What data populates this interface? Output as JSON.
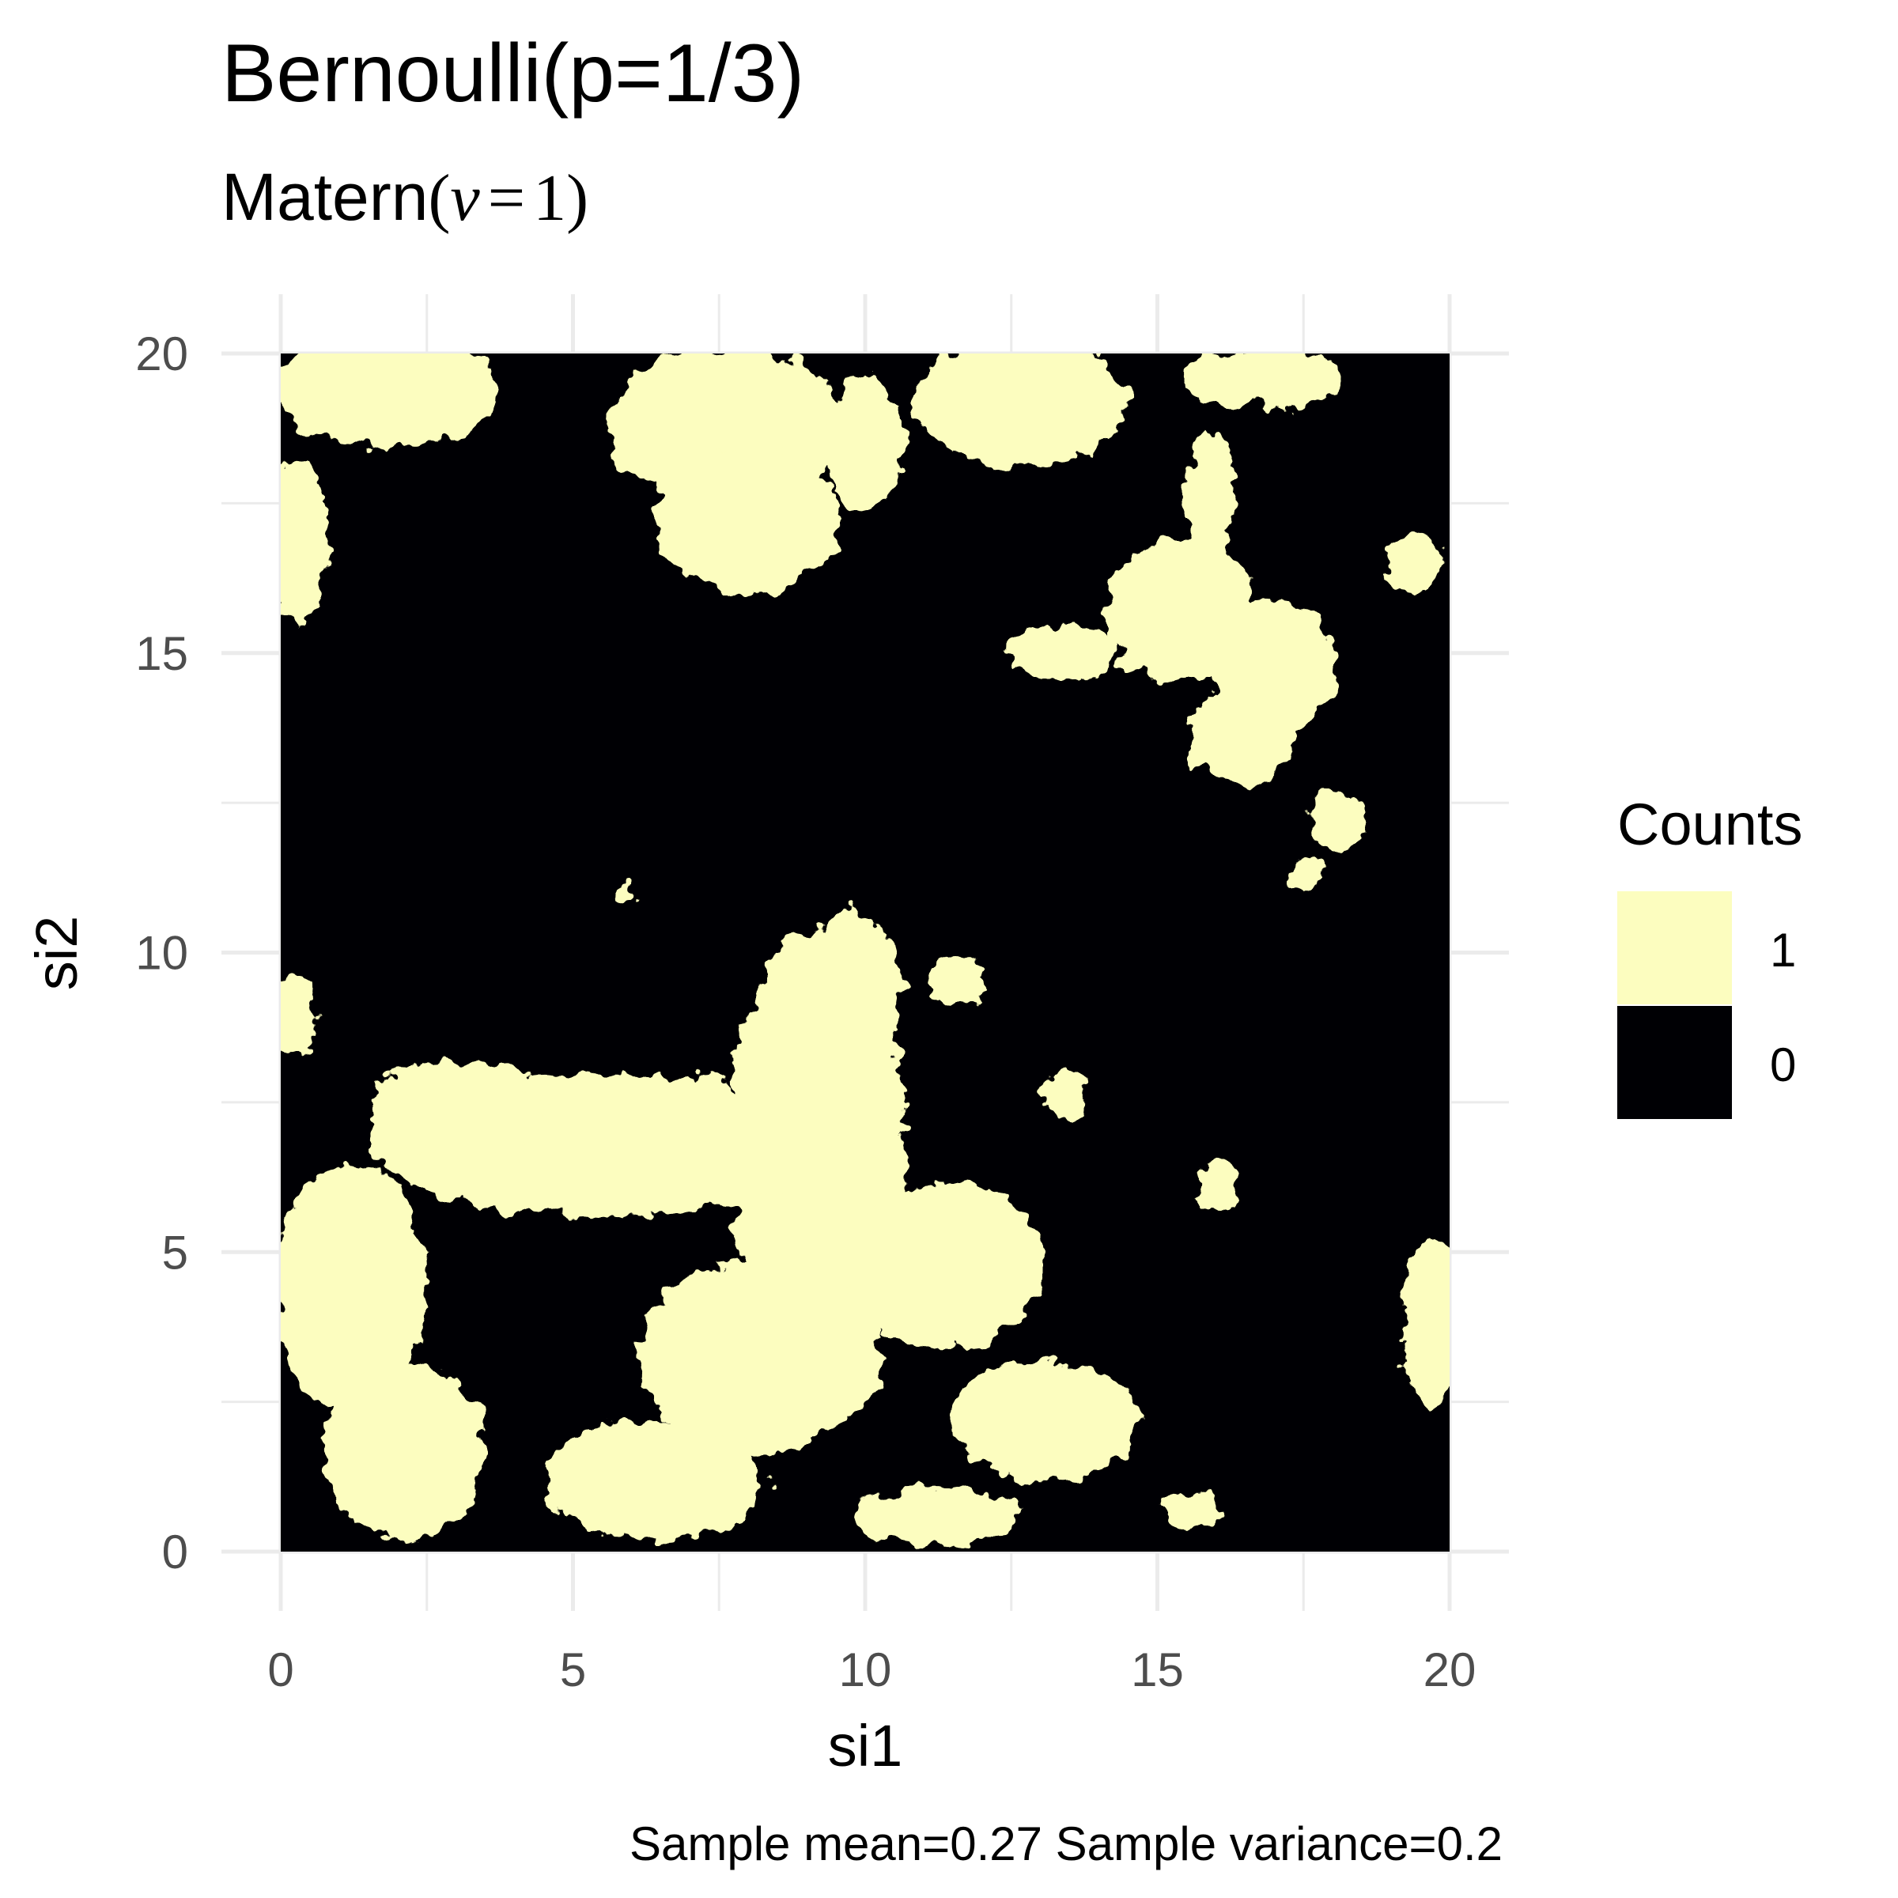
{
  "chart_data": {
    "type": "heatmap",
    "title": "Bernoulli(p=1/3)",
    "subtitle": {
      "prefix": "Matern",
      "open_paren": "(",
      "nu_symbol": "ν",
      "equals": "=",
      "value": "1",
      "close_paren": ")"
    },
    "xlabel": "si1",
    "ylabel": "si2",
    "xlim": [
      0,
      20
    ],
    "ylim": [
      0,
      20
    ],
    "x_ticks": [
      "0",
      "5",
      "10",
      "15",
      "20"
    ],
    "y_ticks": [
      "0",
      "5",
      "10",
      "15",
      "20"
    ],
    "grid": true,
    "legend": {
      "title": "Counts",
      "position": "right",
      "entries": [
        {
          "label": "1",
          "color": "#FCFDBF"
        },
        {
          "label": "0",
          "color": "#000004"
        }
      ]
    },
    "caption": "Sample mean=0.27 Sample variance=0.2",
    "field_background_value": 0,
    "regions_value_1": [
      {
        "name": "top-left-blob",
        "cx": 1.8,
        "cy": 19.4,
        "rx": 1.9,
        "ry": 1.0
      },
      {
        "name": "left-edge-upper",
        "cx": 0.3,
        "cy": 16.9,
        "rx": 0.5,
        "ry": 1.4
      },
      {
        "name": "top-center-blob-a",
        "cx": 7.6,
        "cy": 18.8,
        "rx": 2.0,
        "ry": 1.3
      },
      {
        "name": "top-center-blob-b",
        "cx": 8.0,
        "cy": 17.2,
        "rx": 1.6,
        "ry": 1.2
      },
      {
        "name": "top-center-blob-c",
        "cx": 10.0,
        "cy": 18.5,
        "rx": 0.7,
        "ry": 1.1
      },
      {
        "name": "top-right-blob",
        "cx": 12.7,
        "cy": 19.2,
        "rx": 1.8,
        "ry": 1.1
      },
      {
        "name": "top-right-small",
        "cx": 16.8,
        "cy": 19.6,
        "rx": 1.4,
        "ry": 0.5
      },
      {
        "name": "right-column-neck",
        "cx": 15.9,
        "cy": 17.6,
        "rx": 0.4,
        "ry": 1.1
      },
      {
        "name": "right-middle-blob-a",
        "cx": 15.4,
        "cy": 15.7,
        "rx": 1.3,
        "ry": 1.2
      },
      {
        "name": "right-middle-blob-b",
        "cx": 17.0,
        "cy": 14.8,
        "rx": 1.1,
        "ry": 1.1
      },
      {
        "name": "right-middle-arm",
        "cx": 13.4,
        "cy": 15.0,
        "rx": 0.9,
        "ry": 0.5
      },
      {
        "name": "right-middle-lobe",
        "cx": 16.4,
        "cy": 13.6,
        "rx": 0.9,
        "ry": 0.8
      },
      {
        "name": "right-small-lobe",
        "cx": 18.1,
        "cy": 12.2,
        "rx": 0.5,
        "ry": 0.5
      },
      {
        "name": "right-small-dot",
        "cx": 17.5,
        "cy": 11.3,
        "rx": 0.3,
        "ry": 0.3
      },
      {
        "name": "far-right-blob",
        "cx": 19.4,
        "cy": 16.5,
        "rx": 0.5,
        "ry": 0.5
      },
      {
        "name": "center-dot",
        "cx": 5.9,
        "cy": 11.0,
        "rx": 0.2,
        "ry": 0.2
      },
      {
        "name": "center-main-trunk",
        "cx": 9.2,
        "cy": 6.8,
        "rx": 1.5,
        "ry": 3.6
      },
      {
        "name": "center-main-top",
        "cx": 9.8,
        "cy": 9.3,
        "rx": 0.8,
        "ry": 1.4
      },
      {
        "name": "center-left-arm",
        "cx": 5.5,
        "cy": 6.8,
        "rx": 4.0,
        "ry": 1.2
      },
      {
        "name": "center-left-top",
        "cx": 3.0,
        "cy": 7.4,
        "rx": 1.5,
        "ry": 0.8
      },
      {
        "name": "center-lower-right",
        "cx": 11.3,
        "cy": 4.8,
        "rx": 1.8,
        "ry": 1.4
      },
      {
        "name": "lower-right-arm",
        "cx": 13.1,
        "cy": 2.2,
        "rx": 1.6,
        "ry": 1.0
      },
      {
        "name": "lower-center-ridge",
        "cx": 8.2,
        "cy": 3.3,
        "rx": 2.1,
        "ry": 1.6
      },
      {
        "name": "lower-center-foot",
        "cx": 6.4,
        "cy": 1.2,
        "rx": 1.9,
        "ry": 1.0
      },
      {
        "name": "lower-right-foot",
        "cx": 11.2,
        "cy": 0.6,
        "rx": 1.4,
        "ry": 0.5
      },
      {
        "name": "bottom-left-blob",
        "cx": 1.2,
        "cy": 4.4,
        "rx": 1.3,
        "ry": 2.1
      },
      {
        "name": "bottom-left-lower",
        "cx": 2.1,
        "cy": 1.7,
        "rx": 1.4,
        "ry": 1.5
      },
      {
        "name": "left-edge-mid",
        "cx": 0.2,
        "cy": 8.9,
        "rx": 0.4,
        "ry": 0.7
      },
      {
        "name": "right-center-dot",
        "cx": 11.6,
        "cy": 9.5,
        "rx": 0.5,
        "ry": 0.4
      },
      {
        "name": "right-center-small",
        "cx": 13.4,
        "cy": 7.6,
        "rx": 0.4,
        "ry": 0.4
      },
      {
        "name": "right-center-blob",
        "cx": 16.0,
        "cy": 6.1,
        "rx": 0.35,
        "ry": 0.45
      },
      {
        "name": "right-edge-lower",
        "cx": 19.7,
        "cy": 3.8,
        "rx": 0.5,
        "ry": 1.4
      },
      {
        "name": "bottom-right-small",
        "cx": 15.6,
        "cy": 0.7,
        "rx": 0.5,
        "ry": 0.3
      }
    ]
  }
}
